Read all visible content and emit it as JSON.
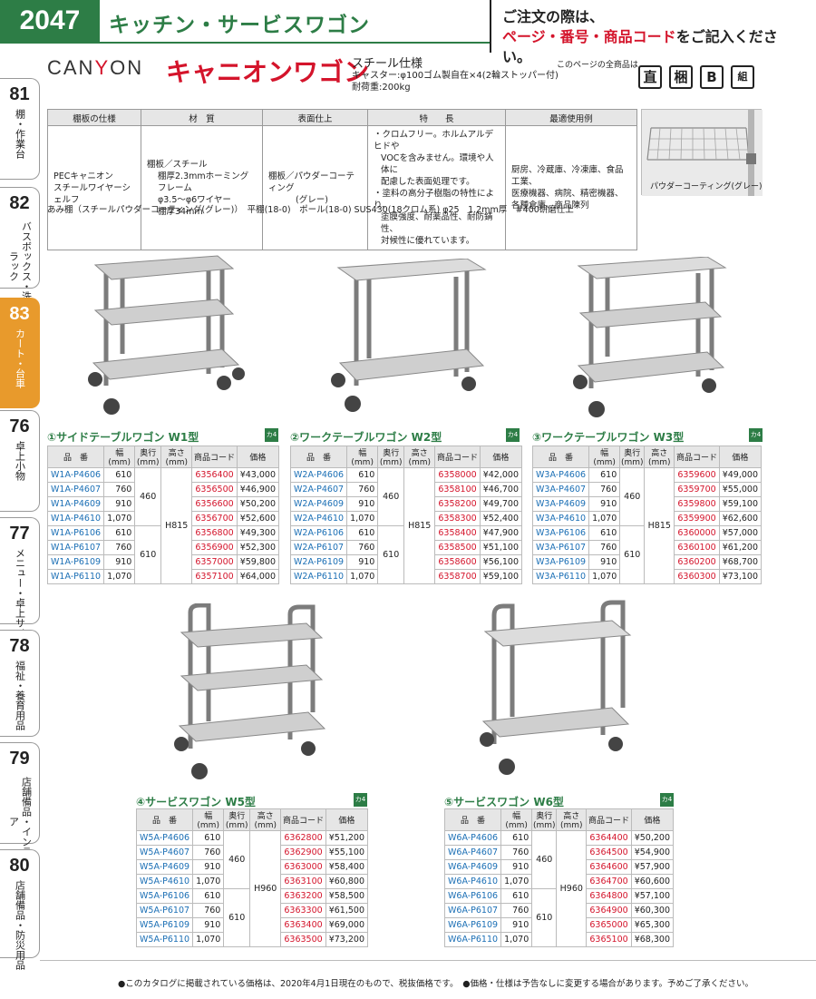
{
  "header": {
    "page_number": "2047",
    "category_title": "キッチン・サービスワゴン",
    "notice_line1": "ご注文の際は、",
    "notice_red": "ページ・番号・商品コード",
    "notice_suffix": "をご記入ください。"
  },
  "side_tabs": [
    {
      "num": "81",
      "label": "棚・作業台"
    },
    {
      "num": "82",
      "label": "バスボックス・洗浄ラック"
    },
    {
      "num": "83",
      "label": "カート・台車"
    },
    {
      "num": "76",
      "label": "卓上小物"
    },
    {
      "num": "77",
      "label": "メニュー・卓上サイン"
    },
    {
      "num": "78",
      "label": "福祉・養育用品"
    },
    {
      "num": "79",
      "label": "店舗備品・インテリア"
    },
    {
      "num": "80",
      "label": "店舗備品・防災用品"
    }
  ],
  "brand": {
    "logo_a": "CAN",
    "logo_b": "Y",
    "logo_c": "ON",
    "name": "キャニオンワゴン",
    "spec_title": "スチール仕様",
    "spec_caster": "キャスター:φ100ゴム製自在×4(2輪ストッパー付)",
    "spec_load": "耐荷重:200kg",
    "all_products_label": "このページの全商品は",
    "icons": [
      "直",
      "梱",
      "B",
      "組"
    ]
  },
  "spec_table": {
    "headers": [
      "棚板の仕様",
      "材　質",
      "表面仕上",
      "特　　長",
      "最適使用例"
    ],
    "col1": [
      "PECキャニオン",
      "スチールワイヤーシェルフ"
    ],
    "col2": [
      "棚板／スチール",
      "棚厚2.3mmホーミングフレーム",
      "φ3.5～φ6ワイヤー",
      "棚厚34mm"
    ],
    "col3": [
      "棚板／パウダーコーティング",
      "(グレー)"
    ],
    "col4": [
      "・クロムフリー。ホルムアルデヒドや",
      "VOCを含みません。環境や人体に",
      "配慮した表面処理です。",
      "・塗料の高分子樹脂の特性により、",
      "塗膜強度、耐薬品性、耐防錆性、",
      "対候性に優れています。"
    ],
    "col5": [
      "厨房、冷蔵庫、冷凍庫、食品工業、",
      "医療機器、病院、精密機器、",
      "各種倉庫、商品陳列"
    ]
  },
  "photo_caption": "パウダーコーティング(グレー)",
  "materials_line": "あみ棚（スチールパウダーコーティング(グレー)）　平棚(18-0)　ポール(18-0) SUS430(18クロム系) φ25　1.2mm厚　#400研磨仕上",
  "table_headers": [
    "品　番",
    "幅(mm)",
    "奥行(mm)",
    "高さ(mm)",
    "商品コード",
    "価格"
  ],
  "kaku_label": "カ4",
  "products": [
    {
      "title": "①サイドテーブルワゴン W1型",
      "height": "H815",
      "depths": [
        "460",
        "610"
      ],
      "rows": [
        [
          "W1A-P4606",
          "610",
          "6356400",
          "¥43,000"
        ],
        [
          "W1A-P4607",
          "760",
          "6356500",
          "¥46,900"
        ],
        [
          "W1A-P4609",
          "910",
          "6356600",
          "¥50,200"
        ],
        [
          "W1A-P4610",
          "1,070",
          "6356700",
          "¥52,600"
        ],
        [
          "W1A-P6106",
          "610",
          "6356800",
          "¥49,300"
        ],
        [
          "W1A-P6107",
          "760",
          "6356900",
          "¥52,300"
        ],
        [
          "W1A-P6109",
          "910",
          "6357000",
          "¥59,800"
        ],
        [
          "W1A-P6110",
          "1,070",
          "6357100",
          "¥64,000"
        ]
      ]
    },
    {
      "title": "②ワークテーブルワゴン W2型",
      "height": "H815",
      "depths": [
        "460",
        "610"
      ],
      "rows": [
        [
          "W2A-P4606",
          "610",
          "6358000",
          "¥42,000"
        ],
        [
          "W2A-P4607",
          "760",
          "6358100",
          "¥46,700"
        ],
        [
          "W2A-P4609",
          "910",
          "6358200",
          "¥49,700"
        ],
        [
          "W2A-P4610",
          "1,070",
          "6358300",
          "¥52,400"
        ],
        [
          "W2A-P6106",
          "610",
          "6358400",
          "¥47,900"
        ],
        [
          "W2A-P6107",
          "760",
          "6358500",
          "¥51,100"
        ],
        [
          "W2A-P6109",
          "910",
          "6358600",
          "¥56,100"
        ],
        [
          "W2A-P6110",
          "1,070",
          "6358700",
          "¥59,100"
        ]
      ]
    },
    {
      "title": "③ワークテーブルワゴン W3型",
      "height": "H815",
      "depths": [
        "460",
        "610"
      ],
      "rows": [
        [
          "W3A-P4606",
          "610",
          "6359600",
          "¥49,000"
        ],
        [
          "W3A-P4607",
          "760",
          "6359700",
          "¥55,000"
        ],
        [
          "W3A-P4609",
          "910",
          "6359800",
          "¥59,100"
        ],
        [
          "W3A-P4610",
          "1,070",
          "6359900",
          "¥62,600"
        ],
        [
          "W3A-P6106",
          "610",
          "6360000",
          "¥57,000"
        ],
        [
          "W3A-P6107",
          "760",
          "6360100",
          "¥61,200"
        ],
        [
          "W3A-P6109",
          "910",
          "6360200",
          "¥68,700"
        ],
        [
          "W3A-P6110",
          "1,070",
          "6360300",
          "¥73,100"
        ]
      ]
    },
    {
      "title": "④サービスワゴン W5型",
      "height": "H960",
      "depths": [
        "460",
        "610"
      ],
      "rows": [
        [
          "W5A-P4606",
          "610",
          "6362800",
          "¥51,200"
        ],
        [
          "W5A-P4607",
          "760",
          "6362900",
          "¥55,100"
        ],
        [
          "W5A-P4609",
          "910",
          "6363000",
          "¥58,400"
        ],
        [
          "W5A-P4610",
          "1,070",
          "6363100",
          "¥60,800"
        ],
        [
          "W5A-P6106",
          "610",
          "6363200",
          "¥58,500"
        ],
        [
          "W5A-P6107",
          "760",
          "6363300",
          "¥61,500"
        ],
        [
          "W5A-P6109",
          "910",
          "6363400",
          "¥69,000"
        ],
        [
          "W5A-P6110",
          "1,070",
          "6363500",
          "¥73,200"
        ]
      ]
    },
    {
      "title": "⑤サービスワゴン W6型",
      "height": "H960",
      "depths": [
        "460",
        "610"
      ],
      "rows": [
        [
          "W6A-P4606",
          "610",
          "6364400",
          "¥50,200"
        ],
        [
          "W6A-P4607",
          "760",
          "6364500",
          "¥54,900"
        ],
        [
          "W6A-P4609",
          "910",
          "6364600",
          "¥57,900"
        ],
        [
          "W6A-P4610",
          "1,070",
          "6364700",
          "¥60,600"
        ],
        [
          "W6A-P6106",
          "610",
          "6364800",
          "¥57,100"
        ],
        [
          "W6A-P6107",
          "760",
          "6364900",
          "¥60,300"
        ],
        [
          "W6A-P6109",
          "910",
          "6365000",
          "¥65,300"
        ],
        [
          "W6A-P6110",
          "1,070",
          "6365100",
          "¥68,300"
        ]
      ]
    }
  ],
  "footer": "●このカタログに掲載されている価格は、2020年4月1日現在のもので、税抜価格です。　●価格・仕様は予告なしに変更する場合があります。予めご了承ください。"
}
